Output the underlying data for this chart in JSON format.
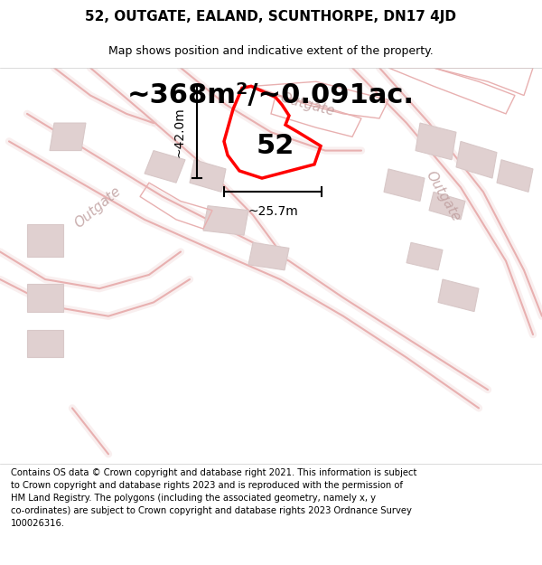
{
  "title_line1": "52, OUTGATE, EALAND, SCUNTHORPE, DN17 4JD",
  "title_line2": "Map shows position and indicative extent of the property.",
  "area_text": "~368m²/~0.091ac.",
  "label_52": "52",
  "dim_vertical": "~42.0m",
  "dim_horizontal": "~25.7m",
  "disclaimer": "Contains OS data © Crown copyright and database right 2021. This information is subject\nto Crown copyright and database rights 2023 and is reproduced with the permission of\nHM Land Registry. The polygons (including the associated geometry, namely x, y\nco-ordinates) are subject to Crown copyright and database rights 2023 Ordnance Survey\n100026316.",
  "bg_color": "#f9f0f0",
  "map_bg": "#f5eded",
  "plot_color": "#ff0000",
  "road_color": "#e8b0b0",
  "road_fill": "#f0d8d8",
  "building_color": "#d8c8c8",
  "building_fill": "#e0d0d0",
  "outgate_label_color": "#c0a0a0",
  "dim_color": "#000000",
  "label_color": "#000000"
}
